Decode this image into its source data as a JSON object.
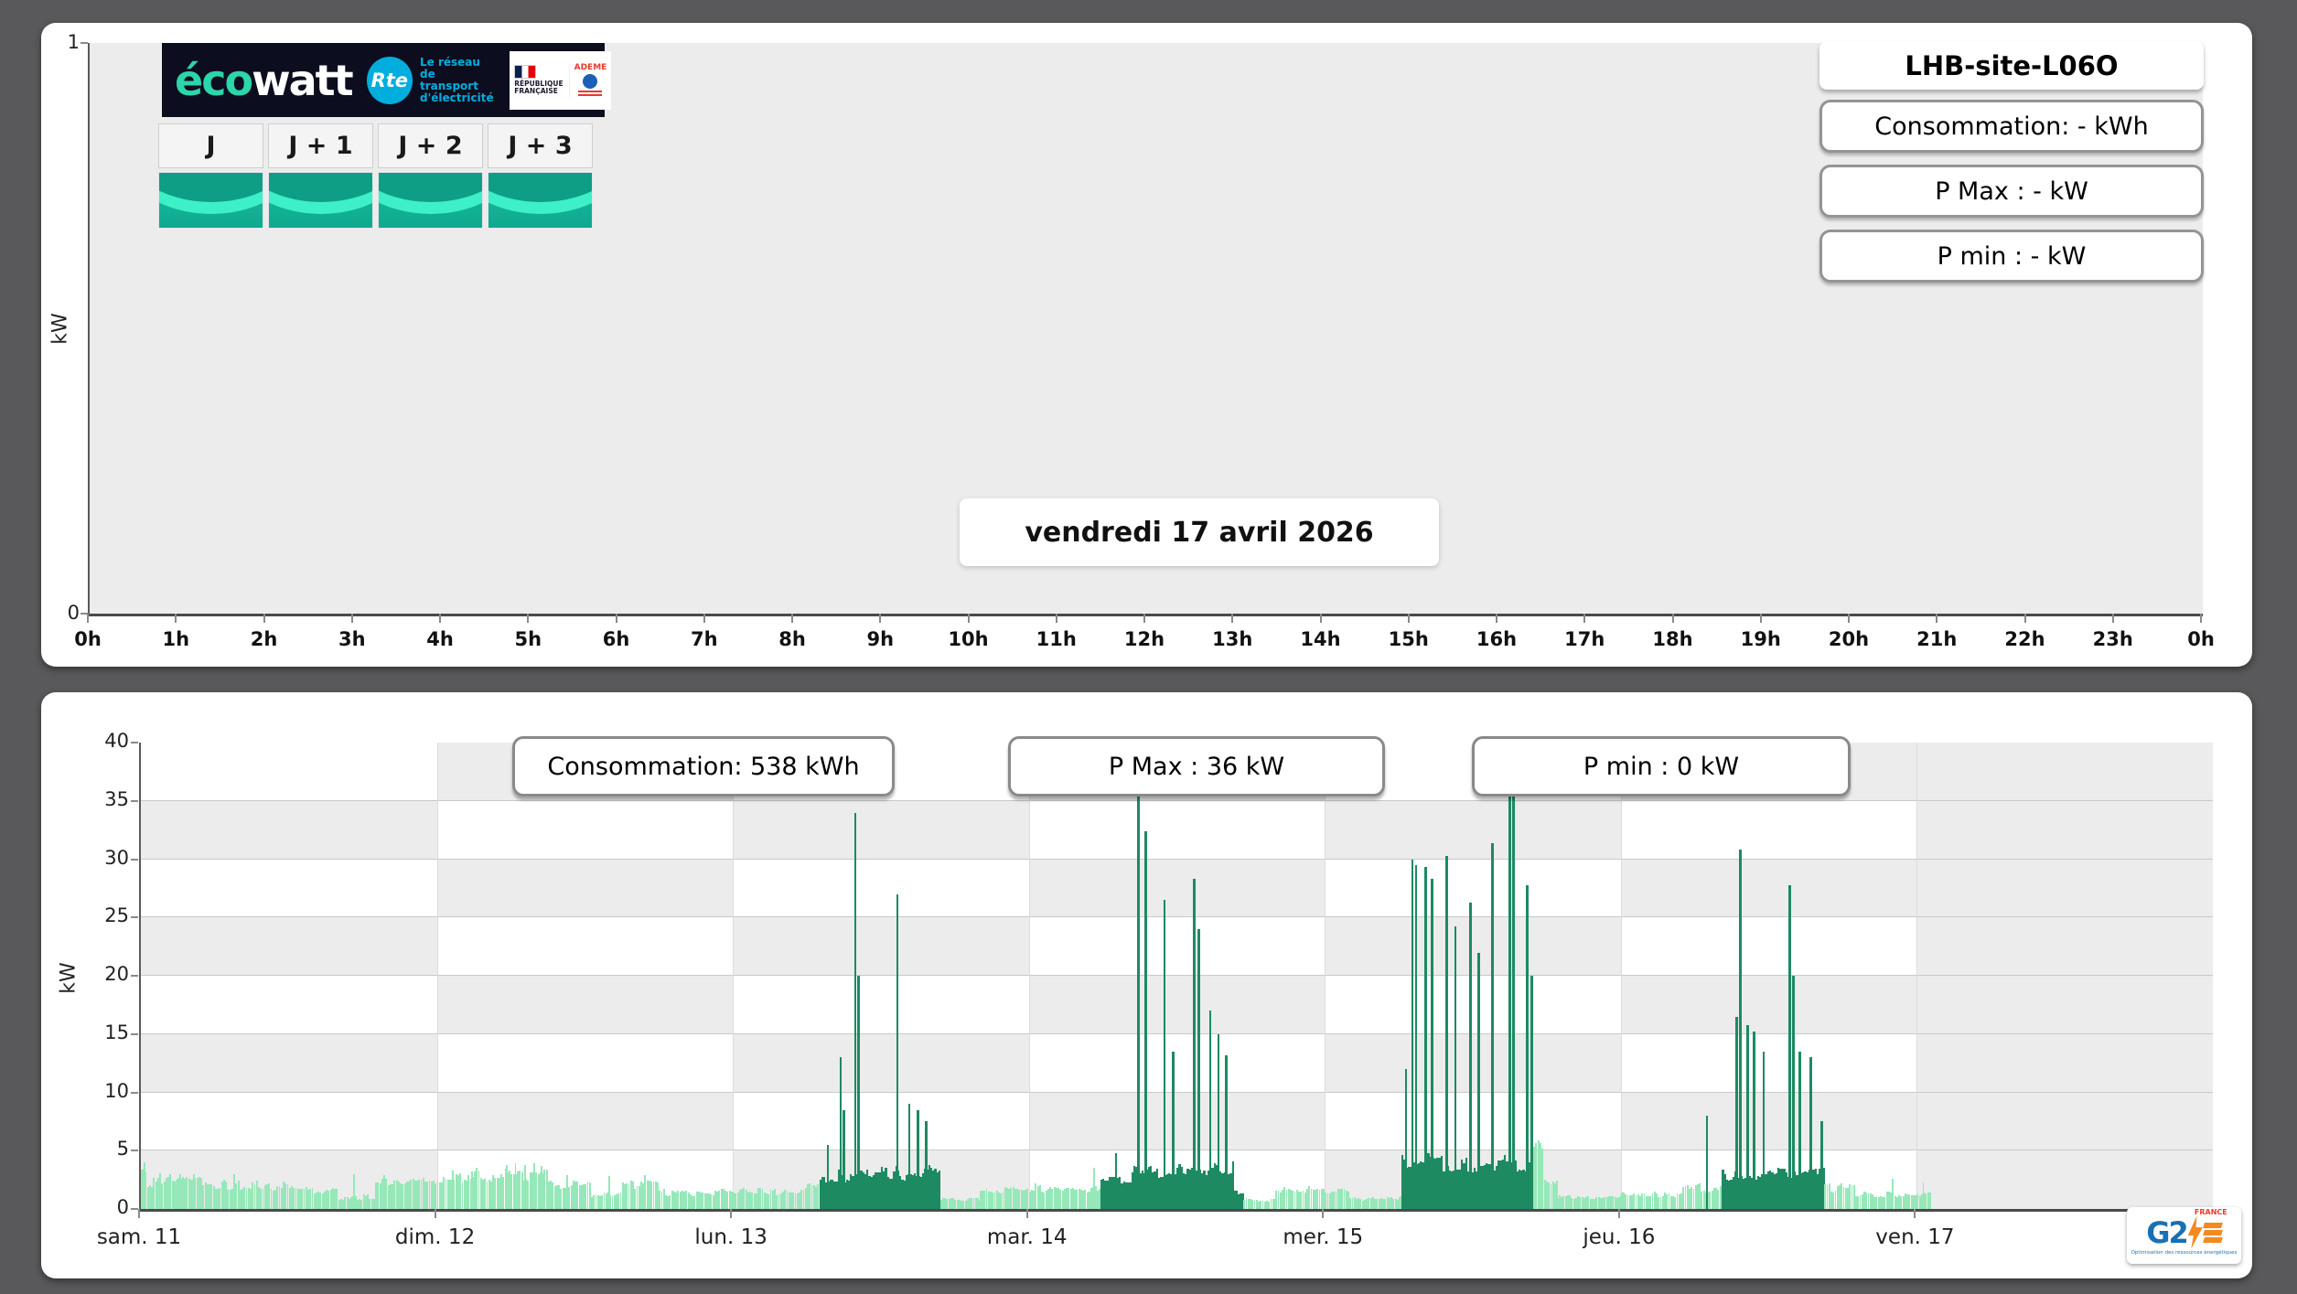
{
  "page": {
    "background_color": "#59595b"
  },
  "top_panel": {
    "site_title": "LHB-site-L06O",
    "stats": [
      {
        "label": "Consommation: - kWh"
      },
      {
        "label": "P Max :  - kW"
      },
      {
        "label": "P min : - kW"
      }
    ],
    "date_label": "vendredi 17 avril 2026",
    "day_tabs": [
      "J",
      "J + 1",
      "J + 2",
      "J + 3"
    ],
    "brand": {
      "wordmark_eco": "éco",
      "wordmark_watt": "watt",
      "rte_short": "Rte",
      "rte_text": "Le réseau\nde transport\nd'électricité",
      "republique": "RÉPUBLIQUE\nFRANÇAISE",
      "ademe": "ADEME"
    }
  },
  "bottom_panel": {
    "stats": [
      {
        "label": "Consommation: 538 kWh"
      },
      {
        "label": "P Max :  36 kW"
      },
      {
        "label": "P min : 0 kW"
      }
    ],
    "logo": {
      "g2": "G2",
      "country": "FRANCE",
      "tagline": "Optimisation des ressources énergétiques"
    }
  },
  "chart_data": [
    {
      "id": "intraday-today",
      "type": "bar",
      "title": "vendredi 17 avril 2026",
      "ylabel": "kW",
      "ylim": [
        0,
        1
      ],
      "y_ticks": [
        1,
        0
      ],
      "x_ticks": [
        "0h",
        "1h",
        "2h",
        "3h",
        "4h",
        "5h",
        "6h",
        "7h",
        "8h",
        "9h",
        "10h",
        "11h",
        "12h",
        "13h",
        "14h",
        "15h",
        "16h",
        "17h",
        "18h",
        "19h",
        "20h",
        "21h",
        "22h",
        "23h",
        "0h"
      ],
      "series": [
        {
          "name": "consommation",
          "values": []
        }
      ]
    },
    {
      "id": "weekly-consumption",
      "type": "bar",
      "ylabel": "kW",
      "ylim": [
        0,
        40
      ],
      "y_ticks": [
        0,
        5,
        10,
        15,
        20,
        25,
        30,
        35,
        40
      ],
      "x_ticks": [
        "sam. 11",
        "dim. 12",
        "lun. 13",
        "mar. 14",
        "mer. 15",
        "jeu. 16",
        "ven. 17"
      ],
      "resolution_minutes": 10,
      "colors": {
        "base": "#96e8b8",
        "peak": "#1d8a62"
      },
      "stats": {
        "consommation_kwh": 538,
        "p_max_kw": 36,
        "p_min_kw": 0
      },
      "days": [
        {
          "label": "sam. 11",
          "segments": [
            [
              0,
              0.5,
              3.0,
              "L"
            ],
            [
              0.5,
              5,
              2.3,
              "L"
            ],
            [
              5,
              12.5,
              2.0,
              "L"
            ],
            [
              12.5,
              16,
              1.7,
              "L"
            ],
            [
              16,
              19,
              1.0,
              "L"
            ],
            [
              19,
              24,
              2.4,
              "L"
            ]
          ],
          "spikes": [
            [
              0.2,
              4.0,
              "L"
            ],
            [
              1.5,
              3.1,
              "L"
            ],
            [
              2.3,
              3.0,
              "L"
            ],
            [
              3.1,
              3.0,
              "L"
            ],
            [
              4.2,
              3.0,
              "L"
            ],
            [
              7.5,
              3.0,
              "L"
            ],
            [
              17.2,
              3.0,
              "L"
            ]
          ]
        },
        {
          "label": "dim. 12",
          "segments": [
            [
              0,
              1,
              2.6,
              "L"
            ],
            [
              1,
              9,
              2.9,
              "L"
            ],
            [
              9,
              12.5,
              2.0,
              "L"
            ],
            [
              12.5,
              15,
              1.3,
              "L"
            ],
            [
              15,
              18.5,
              2.0,
              "L"
            ],
            [
              18.5,
              24,
              1.4,
              "L"
            ]
          ],
          "spikes": [
            [
              1.2,
              3.3,
              "L"
            ],
            [
              2.8,
              3.2,
              "L"
            ],
            [
              5.6,
              3.8,
              "L"
            ],
            [
              6.3,
              3.9,
              "L"
            ],
            [
              7.1,
              3.8,
              "L"
            ],
            [
              7.8,
              3.9,
              "L"
            ],
            [
              8.4,
              3.7,
              "L"
            ],
            [
              10.5,
              2.9,
              "L"
            ],
            [
              13.9,
              2.8,
              "L"
            ],
            [
              16.8,
              2.9,
              "L"
            ]
          ]
        },
        {
          "label": "lun. 13",
          "segments": [
            [
              0,
              5.5,
              1.5,
              "L"
            ],
            [
              5.5,
              7,
              1.9,
              "L"
            ],
            [
              7,
              10,
              2.8,
              "D"
            ],
            [
              10,
              16.8,
              3.1,
              "D"
            ],
            [
              16.8,
              20,
              0.8,
              "L"
            ],
            [
              20,
              24,
              1.7,
              "L"
            ]
          ],
          "spikes": [
            [
              7.6,
              5.5,
              "D"
            ],
            [
              8.65,
              13,
              "D"
            ],
            [
              8.9,
              8.5,
              "D"
            ],
            [
              9.85,
              34,
              "D"
            ],
            [
              10.1,
              20,
              "D"
            ],
            [
              13.25,
              27,
              "D"
            ],
            [
              14.2,
              9,
              "D"
            ],
            [
              14.9,
              8.5,
              "D"
            ],
            [
              15.6,
              7.5,
              "D"
            ]
          ]
        },
        {
          "label": "mar. 14",
          "segments": [
            [
              0,
              5.8,
              1.8,
              "L"
            ],
            [
              5.8,
              8.3,
              2.7,
              "D"
            ],
            [
              8.3,
              16.6,
              3.4,
              "D"
            ],
            [
              16.6,
              17.4,
              1.4,
              "D"
            ],
            [
              17.4,
              20,
              0.8,
              "L"
            ],
            [
              20,
              24,
              1.6,
              "L"
            ]
          ],
          "spikes": [
            [
              5.2,
              3.5,
              "L"
            ],
            [
              7.0,
              4.8,
              "D"
            ],
            [
              8.8,
              35.4,
              "D"
            ],
            [
              9.4,
              32.4,
              "D"
            ],
            [
              10.9,
              26.5,
              "D"
            ],
            [
              11.6,
              13.5,
              "D"
            ],
            [
              13.3,
              28.3,
              "D"
            ],
            [
              13.7,
              24,
              "D"
            ],
            [
              14.6,
              17,
              "D"
            ],
            [
              15.3,
              15,
              "D"
            ],
            [
              15.9,
              13.2,
              "D"
            ]
          ]
        },
        {
          "label": "mer. 15",
          "segments": [
            [
              0,
              2,
              1.4,
              "L"
            ],
            [
              2,
              6.2,
              0.9,
              "L"
            ],
            [
              6.2,
              16.9,
              3.8,
              "D"
            ],
            [
              16.9,
              17.6,
              5.0,
              "L"
            ],
            [
              17.6,
              18.8,
              2.6,
              "L"
            ],
            [
              18.8,
              24,
              1.0,
              "L"
            ]
          ],
          "spikes": [
            [
              6.5,
              12,
              "D"
            ],
            [
              7.0,
              30,
              "D"
            ],
            [
              7.3,
              29.5,
              "D"
            ],
            [
              8.1,
              29.3,
              "D"
            ],
            [
              8.6,
              28.3,
              "D"
            ],
            [
              9.8,
              30.3,
              "D"
            ],
            [
              10.5,
              24.2,
              "D"
            ],
            [
              11.7,
              26.3,
              "D"
            ],
            [
              12.4,
              22,
              "D"
            ],
            [
              13.5,
              31.4,
              "D"
            ],
            [
              14.9,
              36,
              "D"
            ],
            [
              15.2,
              35.5,
              "D"
            ],
            [
              16.3,
              27.8,
              "D"
            ],
            [
              16.7,
              20,
              "D"
            ]
          ]
        },
        {
          "label": "jeu. 16",
          "segments": [
            [
              0,
              5,
              1.2,
              "L"
            ],
            [
              5,
              8.2,
              1.8,
              "L"
            ],
            [
              8.2,
              16.5,
              3.1,
              "D"
            ],
            [
              16.5,
              19,
              1.8,
              "L"
            ],
            [
              19,
              24,
              1.2,
              "L"
            ]
          ],
          "spikes": [
            [
              6.9,
              8,
              "D"
            ],
            [
              9.3,
              16.5,
              "D"
            ],
            [
              9.6,
              30.8,
              "D"
            ],
            [
              10.2,
              15.8,
              "D"
            ],
            [
              10.7,
              15.2,
              "D"
            ],
            [
              11.5,
              13.5,
              "D"
            ],
            [
              13.6,
              27.8,
              "D"
            ],
            [
              13.9,
              20,
              "D"
            ],
            [
              14.4,
              13.5,
              "D"
            ],
            [
              15.3,
              13,
              "D"
            ],
            [
              16.2,
              7.5,
              "D"
            ],
            [
              22,
              2.6,
              "L"
            ]
          ]
        },
        {
          "label": "ven. 17",
          "segments": [
            [
              0,
              1.1,
              1.3,
              "L"
            ]
          ],
          "spikes": [
            [
              0.45,
              2.3,
              "L"
            ]
          ]
        }
      ]
    }
  ]
}
